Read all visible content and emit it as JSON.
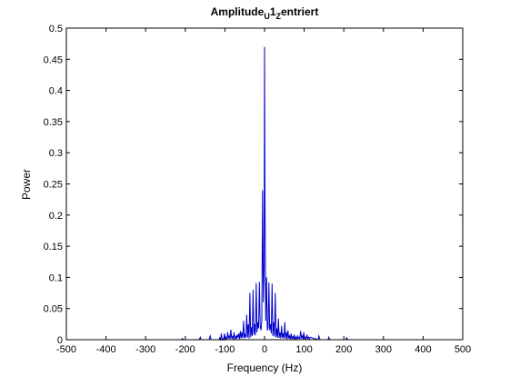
{
  "chart_data": {
    "type": "line",
    "title": {
      "parts": [
        {
          "text": "Amplitude",
          "sub": false,
          "sup": false
        },
        {
          "text": "U",
          "sub": true,
          "sup": false
        },
        {
          "text": "1",
          "sub": false,
          "sup": false
        },
        {
          "text": "Z",
          "sub": true,
          "sup": false
        },
        {
          "text": "entriert",
          "sub": false,
          "sup": false
        }
      ]
    },
    "xlabel": "Frequency (Hz)",
    "ylabel": "Power",
    "xlim": [
      -500,
      500
    ],
    "ylim": [
      0,
      0.5
    ],
    "xticks": [
      -500,
      -400,
      -300,
      -200,
      -100,
      0,
      100,
      200,
      300,
      400,
      500
    ],
    "yticks": [
      0,
      0.05,
      0.1,
      0.15,
      0.2,
      0.25,
      0.3,
      0.35,
      0.4,
      0.45,
      0.5
    ],
    "grid": false,
    "legend": "none",
    "line_color": "#0000cc",
    "series": [
      {
        "x": [
          -500,
          -300,
          -210,
          -207,
          -205,
          -165,
          -162,
          -160,
          -140,
          -137,
          -135,
          -115,
          -113,
          -111,
          -109,
          -107,
          -105,
          -103,
          -101,
          -99,
          -97,
          -95,
          -93,
          -91,
          -89,
          -87,
          -85,
          -83,
          -81,
          -79,
          -77,
          -75,
          -73,
          -71,
          -69,
          -67,
          -65,
          -63,
          -61,
          -59,
          -57,
          -55,
          -53,
          -51,
          -49,
          -47,
          -45,
          -43,
          -41,
          -39,
          -37,
          -35,
          -33,
          -31,
          -29,
          -27,
          -25,
          -23,
          -21,
          -19,
          -17,
          -15,
          -13,
          -11,
          -9,
          -7,
          -5,
          -3,
          -1,
          0,
          1,
          3,
          5,
          7,
          9,
          11,
          13,
          15,
          17,
          19,
          21,
          23,
          25,
          27,
          29,
          31,
          33,
          35,
          37,
          39,
          41,
          43,
          45,
          47,
          49,
          51,
          53,
          55,
          57,
          59,
          61,
          63,
          65,
          67,
          69,
          71,
          73,
          75,
          77,
          79,
          81,
          83,
          85,
          87,
          89,
          91,
          93,
          95,
          97,
          99,
          101,
          103,
          105,
          107,
          109,
          111,
          113,
          115,
          135,
          137,
          140,
          160,
          162,
          165,
          205,
          207,
          210,
          300,
          500
        ],
        "y": [
          0,
          0,
          0,
          0.002,
          0,
          0,
          0.004,
          0,
          0,
          0.006,
          0,
          0,
          0.003,
          0,
          0.01,
          0,
          0.002,
          0,
          0.01,
          0.001,
          0.004,
          0,
          0.012,
          0.002,
          0.006,
          0.001,
          0.016,
          0.002,
          0.005,
          0.001,
          0.012,
          0.002,
          0.005,
          0.001,
          0.008,
          0.003,
          0.01,
          0.001,
          0.014,
          0.002,
          0.012,
          0.003,
          0.03,
          0.002,
          0.008,
          0.004,
          0.04,
          0.003,
          0.025,
          0.002,
          0.075,
          0.004,
          0.02,
          0.006,
          0.08,
          0.008,
          0.025,
          0.007,
          0.091,
          0.012,
          0.028,
          0.018,
          0.093,
          0.022,
          0.015,
          0.03,
          0.24,
          0.06,
          0.12,
          0.47,
          0.24,
          0.03,
          0.1,
          0.015,
          0.02,
          0.092,
          0.015,
          0.025,
          0.01,
          0.09,
          0.006,
          0.028,
          0.005,
          0.075,
          0.004,
          0.018,
          0.003,
          0.034,
          0.003,
          0.012,
          0.002,
          0.022,
          0.003,
          0.01,
          0.002,
          0.028,
          0.002,
          0.012,
          0.001,
          0.015,
          0.002,
          0.006,
          0.001,
          0.01,
          0.001,
          0.005,
          0.001,
          0.008,
          0.001,
          0.004,
          0.001,
          0.006,
          0.002,
          0.004,
          0.001,
          0.014,
          0.002,
          0.006,
          0.001,
          0.012,
          0.002,
          0.004,
          0.001,
          0.008,
          0.002,
          0.004,
          0.001,
          0.004,
          0,
          0.006,
          0,
          0,
          0.004,
          0,
          0,
          0.003,
          0,
          0,
          0
        ]
      }
    ]
  }
}
